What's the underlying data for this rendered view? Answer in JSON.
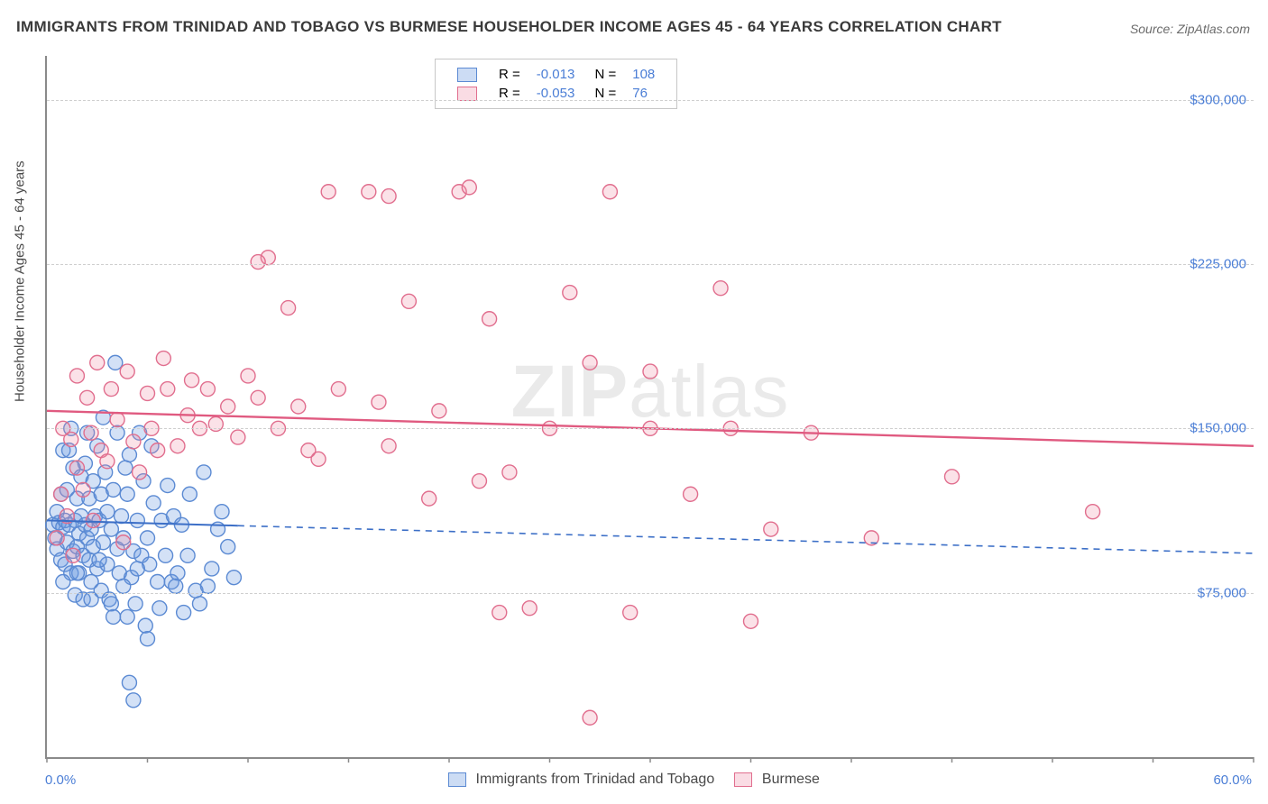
{
  "title": "IMMIGRANTS FROM TRINIDAD AND TOBAGO VS BURMESE HOUSEHOLDER INCOME AGES 45 - 64 YEARS CORRELATION CHART",
  "source_label": "Source: ZipAtlas.com",
  "watermark": "ZIPatlas",
  "ylabel": "Householder Income Ages 45 - 64 years",
  "chart": {
    "type": "scatter",
    "xlim": [
      0,
      60
    ],
    "ylim": [
      0,
      320000
    ],
    "x_start_label": "0.0%",
    "x_end_label": "60.0%",
    "xtick_step_pct": 5,
    "y_gridlines": [
      75000,
      150000,
      225000,
      300000
    ],
    "y_tick_labels": [
      "$75,000",
      "$150,000",
      "$225,000",
      "$300,000"
    ],
    "background_color": "#ffffff",
    "grid_color": "#cfcfcf",
    "axis_color": "#8a8a8a",
    "tick_text_color": "#4b7ed6",
    "marker_radius": 8,
    "marker_stroke_width": 1.4,
    "series": [
      {
        "key": "trinidad",
        "label": "Immigrants from Trinidad and Tobago",
        "fill": "rgba(108,154,224,0.30)",
        "stroke": "#5b8ad3",
        "swatch_fill": "rgba(108,154,224,0.35)",
        "swatch_border": "#5b8ad3",
        "R": "-0.013",
        "N": "108",
        "trend": {
          "y_at_x0": 108000,
          "y_at_x60": 93000,
          "solid_until_x": 9.5,
          "color": "#3c6fc7",
          "width": 2,
          "dash": "7 6"
        },
        "p": [
          [
            0.3,
            106000
          ],
          [
            0.4,
            100000
          ],
          [
            0.5,
            112000
          ],
          [
            0.5,
            95000
          ],
          [
            0.6,
            107000
          ],
          [
            0.7,
            120000
          ],
          [
            0.7,
            90000
          ],
          [
            0.8,
            140000
          ],
          [
            0.8,
            105000
          ],
          [
            0.9,
            108000
          ],
          [
            0.9,
            88000
          ],
          [
            1.0,
            122000
          ],
          [
            1.0,
            98000
          ],
          [
            1.1,
            140000
          ],
          [
            1.1,
            106000
          ],
          [
            1.2,
            150000
          ],
          [
            1.2,
            84000
          ],
          [
            1.3,
            94000
          ],
          [
            1.3,
            132000
          ],
          [
            1.4,
            108000
          ],
          [
            1.4,
            74000
          ],
          [
            1.5,
            118000
          ],
          [
            1.5,
            96000
          ],
          [
            1.6,
            102000
          ],
          [
            1.6,
            84000
          ],
          [
            1.7,
            128000
          ],
          [
            1.7,
            110000
          ],
          [
            1.8,
            92000
          ],
          [
            1.8,
            72000
          ],
          [
            1.9,
            106000
          ],
          [
            1.9,
            134000
          ],
          [
            2.0,
            148000
          ],
          [
            2.0,
            100000
          ],
          [
            2.1,
            90000
          ],
          [
            2.1,
            118000
          ],
          [
            2.2,
            80000
          ],
          [
            2.2,
            104000
          ],
          [
            2.3,
            126000
          ],
          [
            2.3,
            96000
          ],
          [
            2.4,
            110000
          ],
          [
            2.5,
            142000
          ],
          [
            2.5,
            86000
          ],
          [
            2.6,
            108000
          ],
          [
            2.7,
            120000
          ],
          [
            2.7,
            76000
          ],
          [
            2.8,
            155000
          ],
          [
            2.8,
            98000
          ],
          [
            2.9,
            130000
          ],
          [
            3.0,
            112000
          ],
          [
            3.0,
            88000
          ],
          [
            3.1,
            72000
          ],
          [
            3.2,
            104000
          ],
          [
            3.3,
            64000
          ],
          [
            3.3,
            122000
          ],
          [
            3.4,
            180000
          ],
          [
            3.5,
            95000
          ],
          [
            3.5,
            148000
          ],
          [
            3.6,
            84000
          ],
          [
            3.7,
            110000
          ],
          [
            3.8,
            100000
          ],
          [
            3.9,
            132000
          ],
          [
            4.0,
            64000
          ],
          [
            4.0,
            120000
          ],
          [
            4.1,
            138000
          ],
          [
            4.2,
            82000
          ],
          [
            4.3,
            94000
          ],
          [
            4.4,
            70000
          ],
          [
            4.5,
            108000
          ],
          [
            4.6,
            148000
          ],
          [
            4.7,
            92000
          ],
          [
            4.8,
            126000
          ],
          [
            4.9,
            60000
          ],
          [
            5.0,
            100000
          ],
          [
            5.1,
            88000
          ],
          [
            5.2,
            142000
          ],
          [
            5.3,
            116000
          ],
          [
            5.5,
            80000
          ],
          [
            5.6,
            68000
          ],
          [
            5.7,
            108000
          ],
          [
            5.9,
            92000
          ],
          [
            6.0,
            124000
          ],
          [
            6.2,
            80000
          ],
          [
            6.3,
            110000
          ],
          [
            6.5,
            84000
          ],
          [
            6.7,
            106000
          ],
          [
            6.8,
            66000
          ],
          [
            7.0,
            92000
          ],
          [
            7.1,
            120000
          ],
          [
            7.4,
            76000
          ],
          [
            7.6,
            70000
          ],
          [
            7.8,
            130000
          ],
          [
            8.0,
            78000
          ],
          [
            8.2,
            86000
          ],
          [
            8.5,
            104000
          ],
          [
            8.7,
            112000
          ],
          [
            9.0,
            96000
          ],
          [
            9.3,
            82000
          ],
          [
            4.1,
            34000
          ],
          [
            5.0,
            54000
          ],
          [
            4.3,
            26000
          ],
          [
            2.6,
            90000
          ],
          [
            1.5,
            84000
          ],
          [
            0.8,
            80000
          ],
          [
            4.5,
            86000
          ],
          [
            3.2,
            70000
          ],
          [
            2.2,
            72000
          ],
          [
            6.4,
            78000
          ],
          [
            3.8,
            78000
          ]
        ]
      },
      {
        "key": "burmese",
        "label": "Burmese",
        "fill": "rgba(238,140,165,0.25)",
        "stroke": "#e16e8e",
        "swatch_fill": "rgba(238,140,165,0.30)",
        "swatch_border": "#e16e8e",
        "R": "-0.053",
        "N": "76",
        "trend": {
          "y_at_x0": 158000,
          "y_at_x60": 142000,
          "solid_until_x": 60,
          "color": "#e05a80",
          "width": 2.4,
          "dash": null
        },
        "p": [
          [
            0.5,
            100000
          ],
          [
            0.7,
            120000
          ],
          [
            0.8,
            150000
          ],
          [
            1.0,
            110000
          ],
          [
            1.2,
            145000
          ],
          [
            1.3,
            92000
          ],
          [
            1.5,
            132000
          ],
          [
            1.5,
            174000
          ],
          [
            1.8,
            122000
          ],
          [
            2.0,
            164000
          ],
          [
            2.2,
            148000
          ],
          [
            2.3,
            108000
          ],
          [
            2.5,
            180000
          ],
          [
            2.7,
            140000
          ],
          [
            3.0,
            135000
          ],
          [
            3.2,
            168000
          ],
          [
            3.5,
            154000
          ],
          [
            3.8,
            98000
          ],
          [
            4.0,
            176000
          ],
          [
            4.3,
            144000
          ],
          [
            4.6,
            130000
          ],
          [
            5.0,
            166000
          ],
          [
            5.2,
            150000
          ],
          [
            5.5,
            140000
          ],
          [
            5.8,
            182000
          ],
          [
            6.0,
            168000
          ],
          [
            6.5,
            142000
          ],
          [
            7.0,
            156000
          ],
          [
            7.2,
            172000
          ],
          [
            7.6,
            150000
          ],
          [
            8.0,
            168000
          ],
          [
            8.4,
            152000
          ],
          [
            9.0,
            160000
          ],
          [
            9.5,
            146000
          ],
          [
            10.0,
            174000
          ],
          [
            10.5,
            164000
          ],
          [
            11.0,
            228000
          ],
          [
            11.5,
            150000
          ],
          [
            12.0,
            205000
          ],
          [
            12.5,
            160000
          ],
          [
            13.0,
            140000
          ],
          [
            14.0,
            258000
          ],
          [
            14.5,
            168000
          ],
          [
            16.0,
            258000
          ],
          [
            16.5,
            162000
          ],
          [
            17.0,
            256000
          ],
          [
            18.0,
            208000
          ],
          [
            19.5,
            158000
          ],
          [
            20.5,
            258000
          ],
          [
            21.0,
            260000
          ],
          [
            21.5,
            126000
          ],
          [
            22.0,
            200000
          ],
          [
            22.5,
            66000
          ],
          [
            23.0,
            130000
          ],
          [
            25.0,
            150000
          ],
          [
            26.0,
            212000
          ],
          [
            27.0,
            180000
          ],
          [
            28.0,
            258000
          ],
          [
            29.0,
            66000
          ],
          [
            30.0,
            176000
          ],
          [
            32.0,
            120000
          ],
          [
            33.5,
            214000
          ],
          [
            35.0,
            62000
          ],
          [
            36.0,
            104000
          ],
          [
            38.0,
            148000
          ],
          [
            41.0,
            100000
          ],
          [
            45.0,
            128000
          ],
          [
            52.0,
            112000
          ],
          [
            27.0,
            18000
          ],
          [
            30.0,
            150000
          ],
          [
            34.0,
            150000
          ],
          [
            10.5,
            226000
          ],
          [
            17.0,
            142000
          ],
          [
            13.5,
            136000
          ],
          [
            19.0,
            118000
          ],
          [
            24.0,
            68000
          ]
        ]
      }
    ]
  },
  "legend_bottom": [
    {
      "series": "trinidad"
    },
    {
      "series": "burmese"
    }
  ]
}
